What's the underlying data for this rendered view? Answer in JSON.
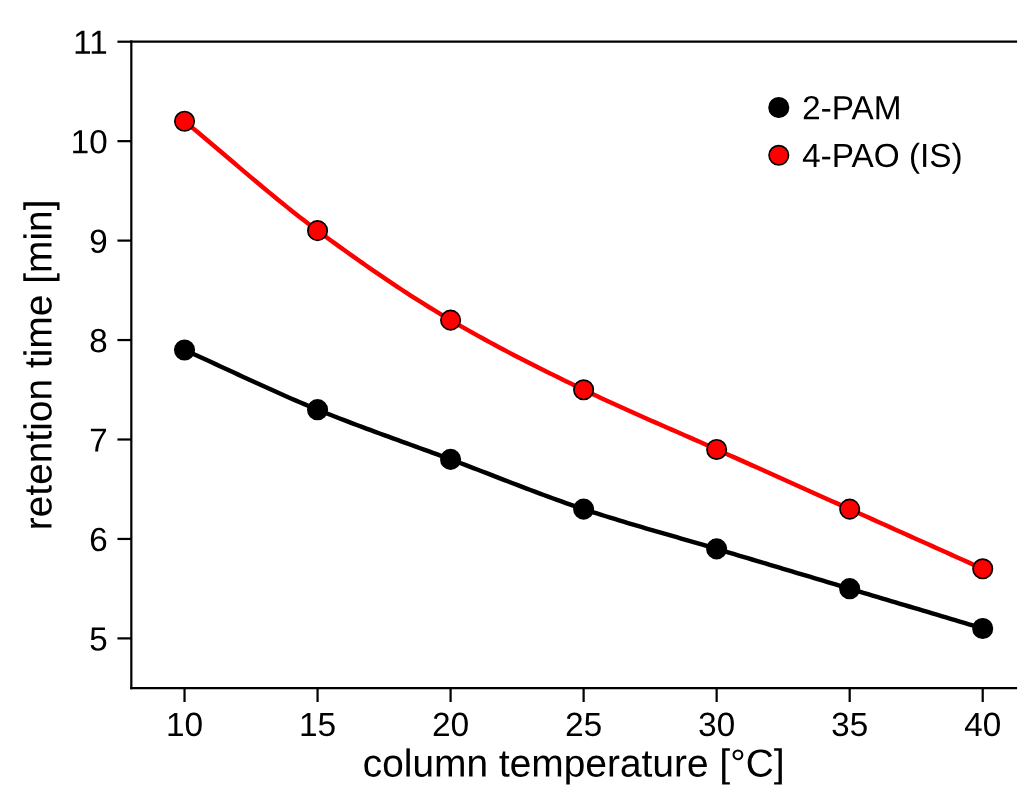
{
  "chart_data": {
    "type": "line",
    "xlabel": "column temperature [°C]",
    "ylabel": "retention time [min]",
    "x": [
      10,
      15,
      20,
      25,
      30,
      35,
      40
    ],
    "series": [
      {
        "name": "2-PAM",
        "color": "#000000",
        "values": [
          7.9,
          7.3,
          6.8,
          6.3,
          5.9,
          5.5,
          5.1
        ]
      },
      {
        "name": "4-PAO (IS)",
        "color": "#ff0000",
        "values": [
          10.2,
          9.1,
          8.2,
          7.5,
          6.9,
          6.3,
          5.7
        ]
      }
    ],
    "xlim": [
      8,
      41.25
    ],
    "ylim": [
      4.5,
      11
    ],
    "xticks": [
      10,
      15,
      20,
      25,
      30,
      35,
      40
    ],
    "yticks": [
      5,
      6,
      7,
      8,
      9,
      10,
      11
    ],
    "grid": false,
    "legend": "top right",
    "marker": "circle",
    "line_style": "solid"
  }
}
